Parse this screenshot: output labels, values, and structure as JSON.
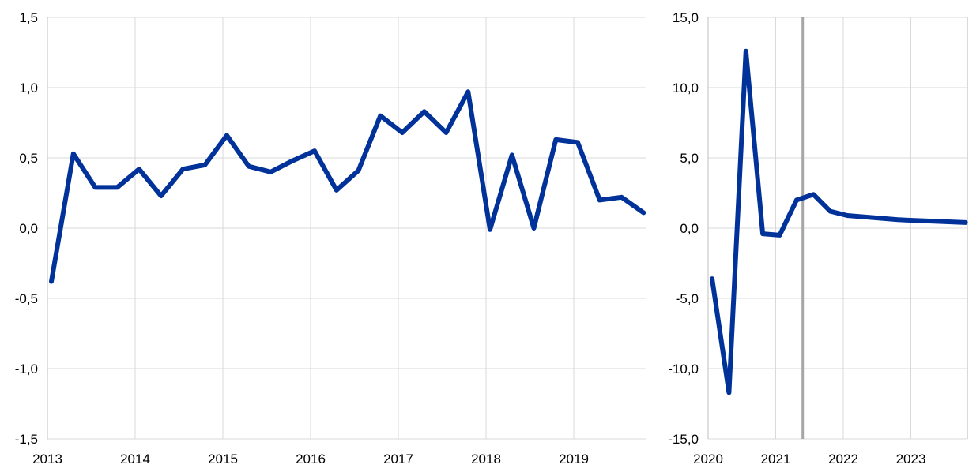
{
  "chart_data": [
    {
      "type": "line",
      "frequency": "quarterly",
      "x": [
        "2013 Q1",
        "2013 Q2",
        "2013 Q3",
        "2013 Q4",
        "2014 Q1",
        "2014 Q2",
        "2014 Q3",
        "2014 Q4",
        "2015 Q1",
        "2015 Q2",
        "2015 Q3",
        "2015 Q4",
        "2016 Q1",
        "2016 Q2",
        "2016 Q3",
        "2016 Q4",
        "2017 Q1",
        "2017 Q2",
        "2017 Q3",
        "2017 Q4",
        "2018 Q1",
        "2018 Q2",
        "2018 Q3",
        "2018 Q4",
        "2019 Q1",
        "2019 Q2",
        "2019 Q3",
        "2019 Q4"
      ],
      "series": [
        {
          "values": [
            -0.38,
            0.53,
            0.29,
            0.29,
            0.42,
            0.23,
            0.42,
            0.45,
            0.66,
            0.44,
            0.4,
            0.48,
            0.55,
            0.27,
            0.41,
            0.8,
            0.68,
            0.83,
            0.68,
            0.97,
            -0.01,
            0.52,
            0.0,
            0.63,
            0.61,
            0.2,
            0.22,
            0.11
          ],
          "color": "#003299"
        }
      ],
      "ylim": [
        -1.5,
        1.5
      ],
      "yticks": [
        "-1,5",
        "-1,0",
        "-0,5",
        "0,0",
        "0,5",
        "1,0",
        "1,5"
      ],
      "xticks": [
        "2013",
        "2014",
        "2015",
        "2016",
        "2017",
        "2018",
        "2019"
      ],
      "grid": true
    },
    {
      "type": "line",
      "frequency": "quarterly",
      "x": [
        "2020 Q1",
        "2020 Q2",
        "2020 Q3",
        "2020 Q4",
        "2021 Q1",
        "2021 Q2",
        "2021 Q3",
        "2021 Q4",
        "2022 Q1",
        "2022 Q2",
        "2022 Q3",
        "2022 Q4",
        "2023 Q1",
        "2023 Q2",
        "2023 Q3",
        "2023 Q4"
      ],
      "series": [
        {
          "values": [
            -3.6,
            -11.7,
            12.6,
            -0.4,
            -0.5,
            2.0,
            2.4,
            1.2,
            0.9,
            0.8,
            0.7,
            0.6,
            0.55,
            0.5,
            0.45,
            0.4
          ],
          "color": "#003299"
        }
      ],
      "ylim": [
        -15,
        15
      ],
      "yticks": [
        "-15,0",
        "-10,0",
        "-5,0",
        "0,0",
        "5,0",
        "10,0",
        "15,0"
      ],
      "xticks": [
        "2020",
        "2021",
        "2022",
        "2023"
      ],
      "vertical_marker": {
        "x": 2021.4,
        "color": "#a6a6a6"
      },
      "grid": true
    }
  ]
}
